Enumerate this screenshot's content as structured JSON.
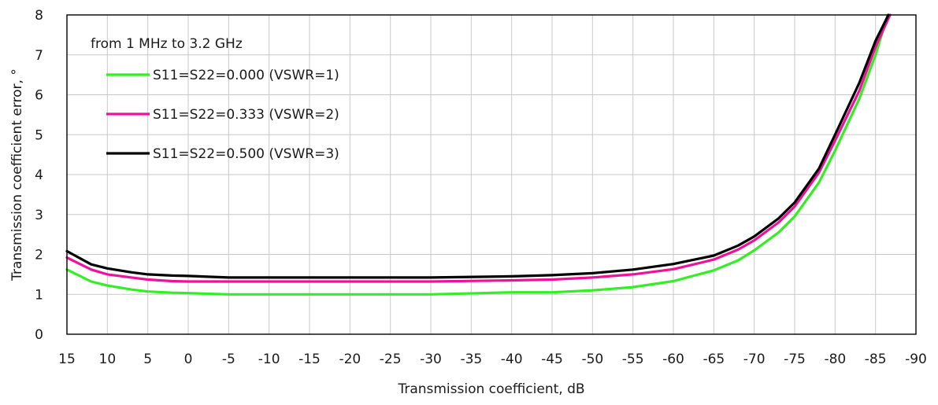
{
  "chart_data": {
    "type": "line",
    "title": "",
    "xlabel": "Transmission coefficient, dB",
    "ylabel": "Transmission coefficient error, °",
    "xlim": [
      15,
      -90
    ],
    "ylim": [
      0,
      8
    ],
    "x_ticks": [
      "15",
      "10",
      "5",
      "0",
      "-5",
      "-10",
      "-15",
      "-20",
      "-25",
      "-30",
      "-35",
      "-40",
      "-45",
      "-50",
      "-55",
      "-60",
      "-65",
      "-70",
      "-75",
      "-80",
      "-85",
      "-90"
    ],
    "y_ticks": [
      "0",
      "1",
      "2",
      "3",
      "4",
      "5",
      "6",
      "7",
      "8"
    ],
    "grid": true,
    "legend_position": "top-left",
    "legend_title": "from 1 MHz to 3.2 GHz",
    "series": [
      {
        "name": "S11=S22=0.000 (VSWR=1)",
        "color": "#33ee22",
        "x": [
          15,
          12,
          10,
          7,
          5,
          2,
          0,
          -5,
          -10,
          -20,
          -30,
          -40,
          -45,
          -50,
          -55,
          -60,
          -65,
          -68,
          -70,
          -73,
          -75,
          -78,
          -80,
          -83,
          -85,
          -86.5
        ],
        "y": [
          1.62,
          1.32,
          1.22,
          1.12,
          1.07,
          1.04,
          1.03,
          1.0,
          1.0,
          1.0,
          1.0,
          1.05,
          1.05,
          1.1,
          1.18,
          1.33,
          1.6,
          1.85,
          2.1,
          2.55,
          2.95,
          3.8,
          4.6,
          5.9,
          7.0,
          8.0
        ]
      },
      {
        "name": "S11=S22=0.333 (VSWR=2)",
        "color": "#ee1199",
        "x": [
          15,
          12,
          10,
          7,
          5,
          2,
          0,
          -5,
          -10,
          -20,
          -30,
          -40,
          -45,
          -50,
          -55,
          -60,
          -65,
          -68,
          -70,
          -73,
          -75,
          -78,
          -80,
          -83,
          -85,
          -86.8
        ],
        "y": [
          1.92,
          1.62,
          1.5,
          1.42,
          1.37,
          1.33,
          1.32,
          1.32,
          1.32,
          1.32,
          1.32,
          1.35,
          1.37,
          1.42,
          1.5,
          1.63,
          1.87,
          2.12,
          2.35,
          2.8,
          3.2,
          4.05,
          4.85,
          6.1,
          7.2,
          8.0
        ]
      },
      {
        "name": "S11=S22=0.500 (VSWR=3)",
        "color": "#000000",
        "x": [
          15,
          12,
          10,
          7,
          5,
          2,
          0,
          -5,
          -10,
          -20,
          -30,
          -40,
          -45,
          -50,
          -55,
          -60,
          -65,
          -68,
          -70,
          -73,
          -75,
          -78,
          -80,
          -83,
          -85,
          -86.6
        ],
        "y": [
          2.08,
          1.75,
          1.65,
          1.55,
          1.5,
          1.47,
          1.46,
          1.42,
          1.42,
          1.42,
          1.42,
          1.45,
          1.48,
          1.53,
          1.62,
          1.76,
          1.97,
          2.22,
          2.45,
          2.9,
          3.3,
          4.15,
          5.0,
          6.3,
          7.35,
          8.0
        ]
      }
    ]
  }
}
